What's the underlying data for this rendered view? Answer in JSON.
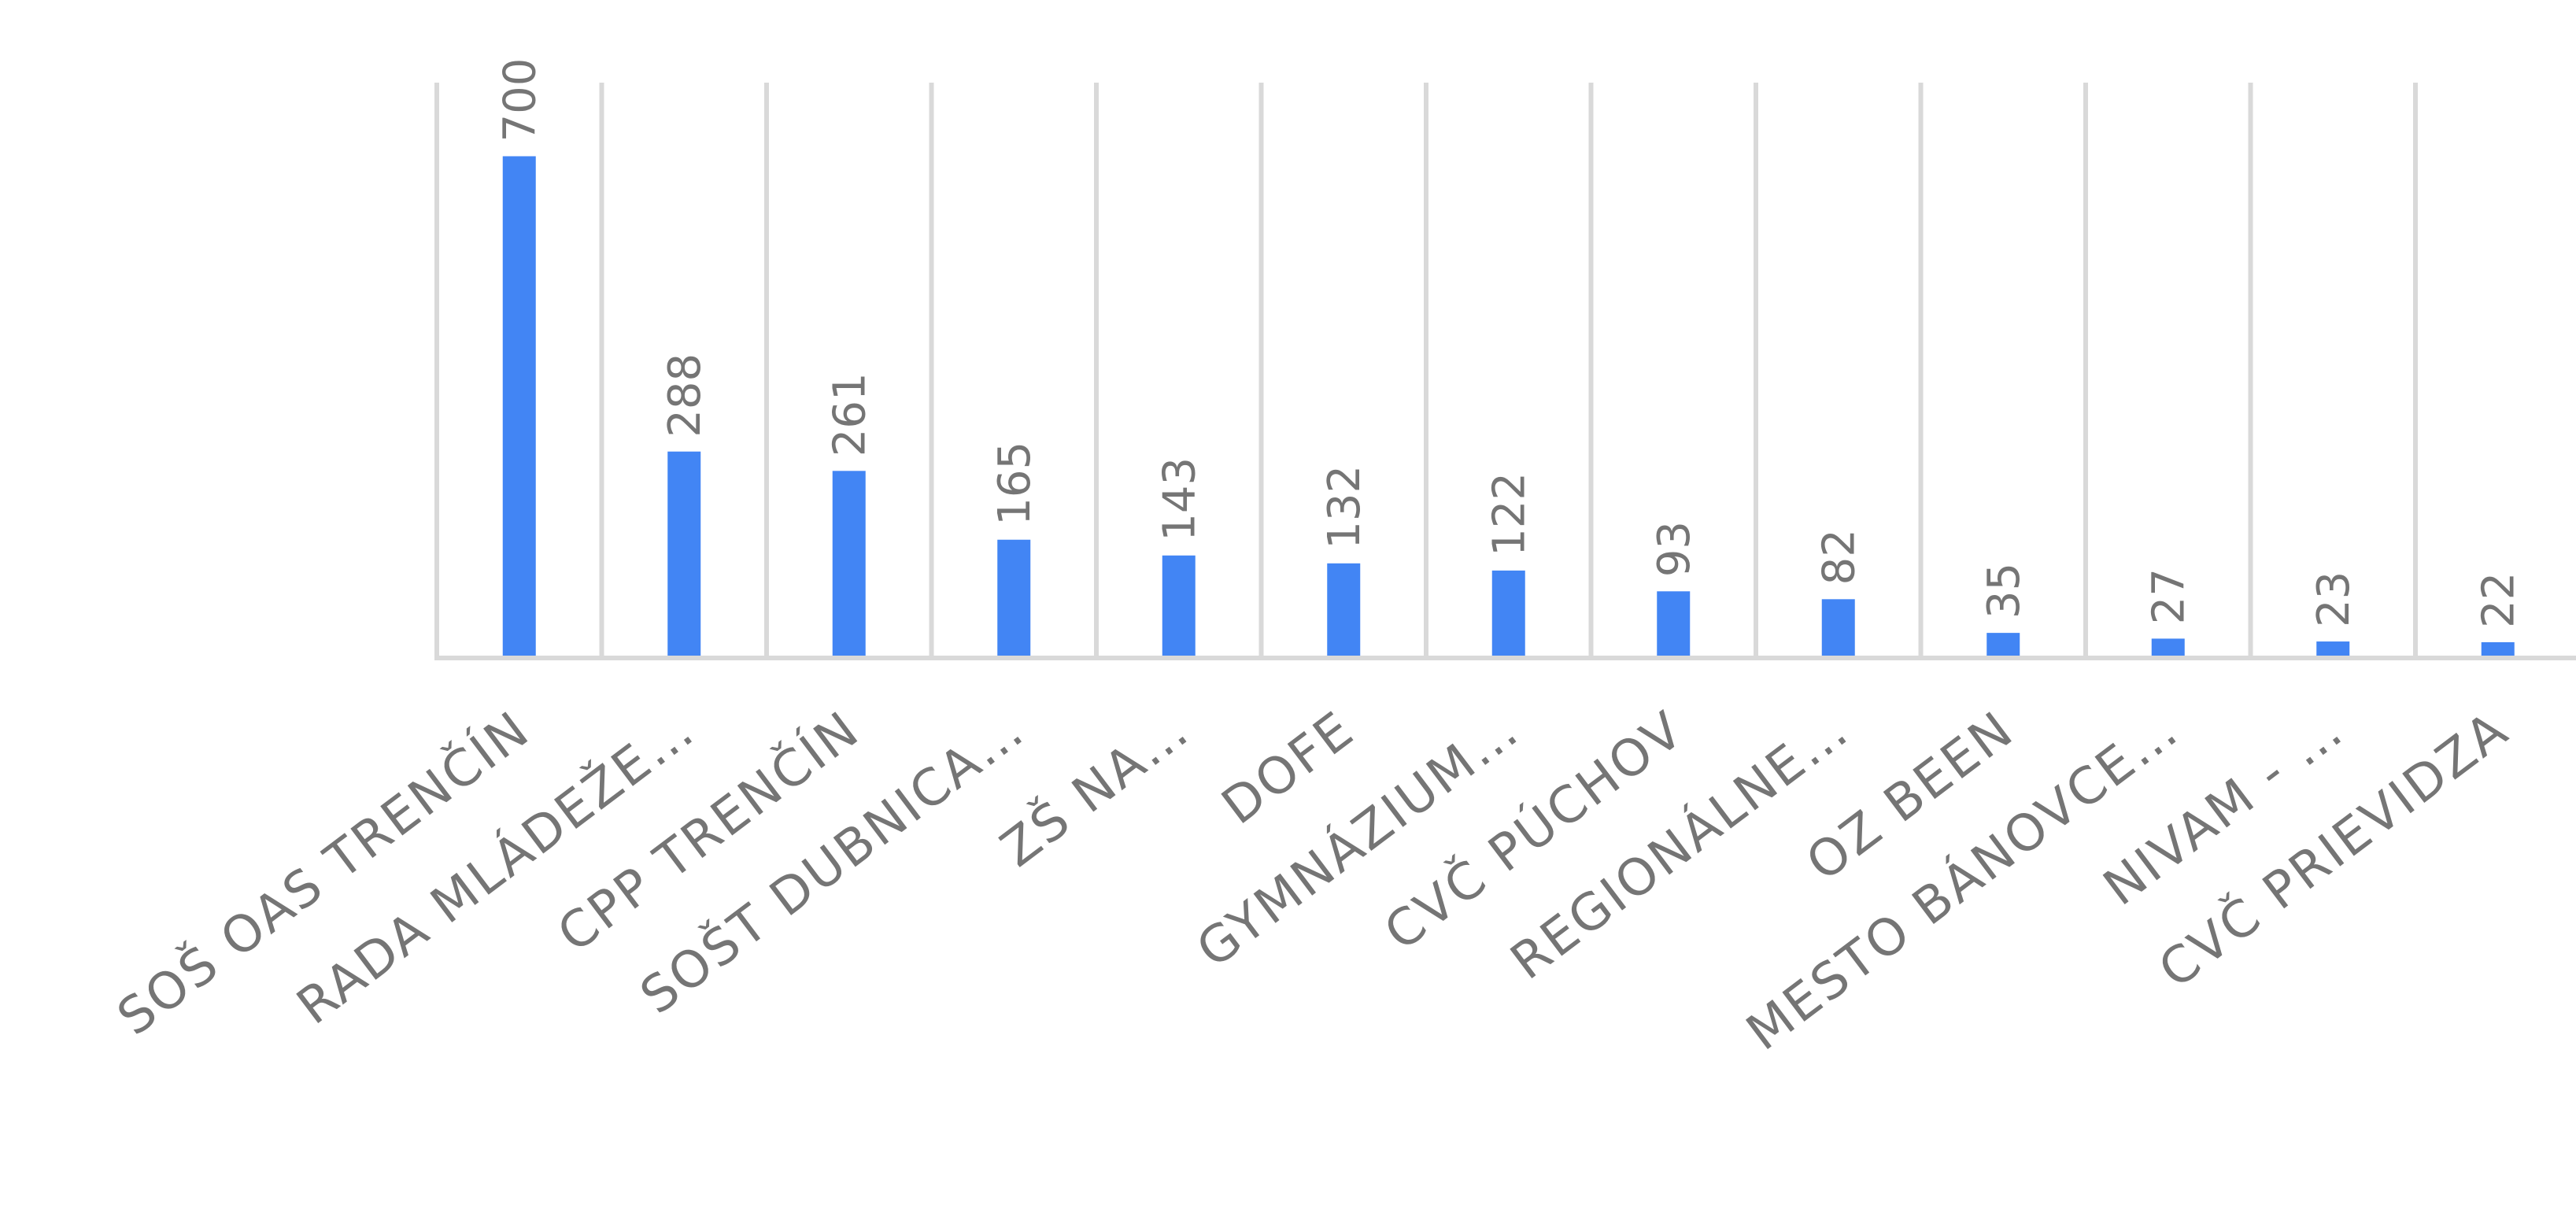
{
  "chart_data": {
    "type": "bar",
    "categories": [
      "SOŠ OAS TRENČÍN",
      "RADA MLÁDEŽE…",
      "CPP TRENČÍN",
      "SOŠT DUBNICA…",
      "ZŠ NA…",
      "DOFE",
      "GYMNÁZIUM…",
      "CVČ PÚCHOV",
      "REGIONÁLNE…",
      "OZ BEEN",
      "MESTO BÁNOVCE…",
      "NIVAM - …",
      "CVČ PRIEVIDZA"
    ],
    "values": [
      700,
      288,
      261,
      165,
      143,
      132,
      122,
      93,
      82,
      35,
      27,
      23,
      22
    ],
    "title": "",
    "xlabel": "",
    "ylabel": "",
    "ylim": [
      0,
      800
    ],
    "data_labels": true,
    "grid": "vertical",
    "legend": "none",
    "colors": {
      "bar": "#4285f4",
      "grid": "#d9d9d9",
      "text": "#757575"
    }
  }
}
